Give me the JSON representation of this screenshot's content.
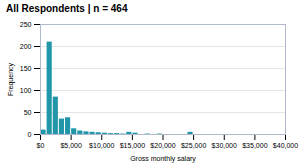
{
  "chart_data": {
    "type": "histogram",
    "title": "All Respondents | n = 464",
    "xlabel": "Gross monthly salary",
    "ylabel": "Frequency",
    "bins": [
      0,
      1000,
      2000,
      3000,
      4000,
      5000,
      6000,
      7000,
      8000,
      9000,
      10000,
      11000,
      12000,
      13000,
      14000,
      15000,
      16000,
      17000,
      18000,
      19000,
      20000,
      21000,
      22000,
      23000,
      24000,
      25000
    ],
    "values": [
      10,
      210,
      85,
      35,
      38,
      13,
      8,
      6,
      5,
      4,
      3,
      2,
      2,
      1,
      5,
      3,
      0,
      1,
      0,
      1,
      0,
      0,
      0,
      0,
      5
    ],
    "color": "#2196a8",
    "xlim": [
      0,
      40000
    ],
    "xticks": [
      {
        "value": 0,
        "label": "$0"
      },
      {
        "value": 5000,
        "label": "$5,000"
      },
      {
        "value": 10000,
        "label": "$10,000"
      },
      {
        "value": 15000,
        "label": "$15,000"
      },
      {
        "value": 20000,
        "label": "$20,000"
      },
      {
        "value": 25000,
        "label": "$25,000"
      },
      {
        "value": 30000,
        "label": "$30,000"
      },
      {
        "value": 35000,
        "label": "$35,000"
      },
      {
        "value": 40000,
        "label": "$40,000"
      }
    ],
    "ylim": [
      0,
      250
    ],
    "yticks": [
      0,
      50,
      100,
      150,
      200,
      250
    ],
    "grid": true
  }
}
